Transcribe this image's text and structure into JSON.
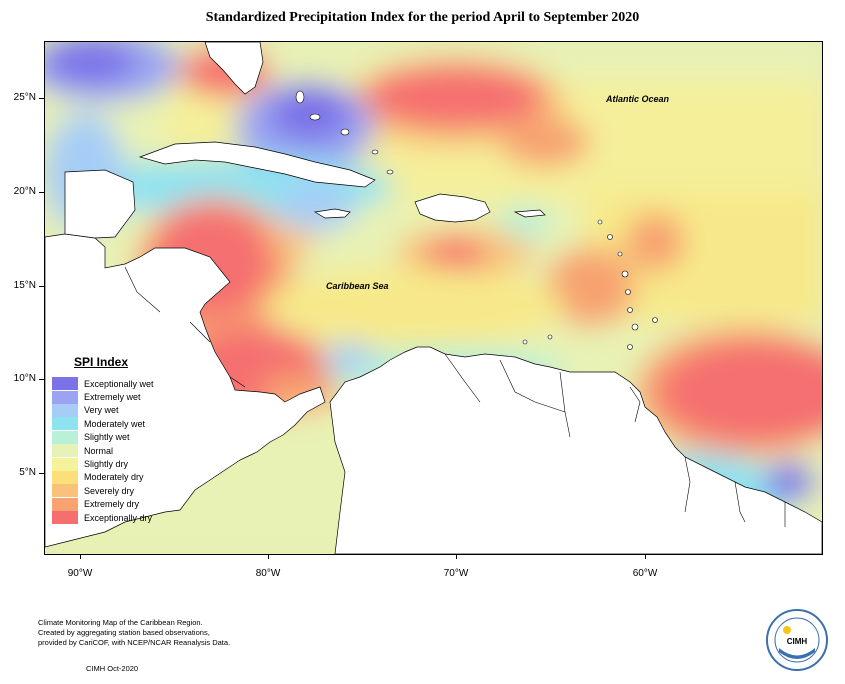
{
  "title": "Standardized Precipitation Index for the period April to September 2020",
  "axes": {
    "lat_labels": [
      "25°N",
      "20°N",
      "15°N",
      "10°N",
      "5°N"
    ],
    "lon_labels": [
      "90°W",
      "80°W",
      "70°W",
      "60°W"
    ]
  },
  "ocean_labels": {
    "atlantic": "Atlantic Ocean",
    "caribbean": "Caribbean Sea"
  },
  "legend": {
    "title": "SPI Index",
    "items": [
      {
        "label": "Exceptionally wet",
        "color": "#7b72e8"
      },
      {
        "label": "Extremely wet",
        "color": "#9aa4f2"
      },
      {
        "label": "Very wet",
        "color": "#a6cdf6"
      },
      {
        "label": "Moderately wet",
        "color": "#8fe3f0"
      },
      {
        "label": "Slightly wet",
        "color": "#b8f0d8"
      },
      {
        "label": "Normal",
        "color": "#e6f2b8"
      },
      {
        "label": "Slightly dry",
        "color": "#f5f39a"
      },
      {
        "label": "Moderately dry",
        "color": "#fbe07a"
      },
      {
        "label": "Severely dry",
        "color": "#f9c27a"
      },
      {
        "label": "Extremely dry",
        "color": "#f7a270"
      },
      {
        "label": "Exceptionally dry",
        "color": "#f56f6f"
      }
    ]
  },
  "footer": {
    "line1": "Climate Monitoring Map of the Caribbean Region.",
    "line2": "Created by aggregating station based observations,",
    "line3": "provided by CariCOF, with NCEP/NCAR Reanalysis Data.",
    "date": "CIMH Oct-2020"
  },
  "logo": {
    "text": "CIMH"
  }
}
